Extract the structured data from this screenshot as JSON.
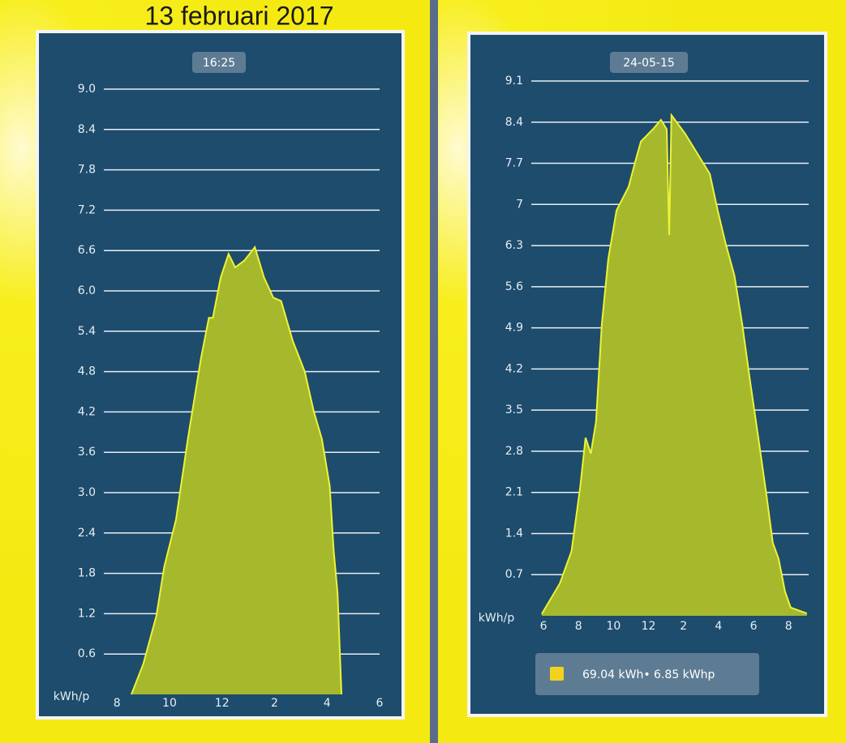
{
  "chart_data": [
    {
      "type": "area",
      "title": "13 februari 2017",
      "label": "16:25",
      "y_label": "kWh/p",
      "x": [
        8.55,
        9.0,
        9.5,
        9.8,
        10.25,
        10.7,
        11.2,
        11.5,
        11.65,
        11.95,
        12.25,
        12.5,
        12.85,
        13.25,
        13.6,
        13.95,
        14.25,
        14.7,
        15.15,
        15.5,
        15.8,
        16.1,
        16.25,
        16.4,
        16.55
      ],
      "series": [
        {
          "color": "#a6b92c",
          "values": [
            0,
            0.45,
            1.17,
            1.9,
            2.6,
            3.8,
            5.0,
            5.6,
            5.6,
            6.2,
            6.55,
            6.35,
            6.45,
            6.65,
            6.2,
            5.9,
            5.85,
            5.25,
            4.8,
            4.2,
            3.8,
            3.1,
            2.15,
            1.5,
            0
          ]
        }
      ],
      "xlim": [
        7.5,
        18
      ],
      "ylim": [
        0,
        9.0
      ],
      "xticks": [
        8,
        10,
        12,
        {
          "value": 14,
          "label": "2"
        },
        {
          "value": 16,
          "label": "4"
        },
        {
          "value": 18,
          "label": "6"
        }
      ],
      "yticks": [
        {
          "value": 0.6,
          "label": "0.6"
        },
        {
          "value": 1.2,
          "label": "1.2"
        },
        {
          "value": 1.8,
          "label": "1.8"
        },
        {
          "value": 2.4,
          "label": "2.4"
        },
        {
          "value": 3.0,
          "label": "3.0"
        },
        {
          "value": 3.6,
          "label": "3.6"
        },
        {
          "value": 4.2,
          "label": "4.2"
        },
        {
          "value": 4.8,
          "label": "4.8"
        },
        {
          "value": 5.4,
          "label": "5.4"
        },
        {
          "value": 6.0,
          "label": "6.0"
        },
        {
          "value": 6.6,
          "label": "6.6"
        },
        {
          "value": 7.2,
          "label": "7.2"
        },
        {
          "value": 7.8,
          "label": "7.8"
        },
        {
          "value": 8.4,
          "label": "8.4"
        },
        {
          "value": 9.0,
          "label": "9.0"
        }
      ],
      "grid": true
    },
    {
      "type": "area",
      "label": "24-05-15",
      "y_label": "kWh/p",
      "x": [
        5.9,
        6.93,
        7.6,
        8.1,
        8.4,
        8.7,
        9.0,
        9.33,
        9.7,
        10.17,
        10.86,
        11.23,
        11.56,
        12.25,
        12.71,
        13.04,
        13.18,
        13.31,
        14.1,
        14.8,
        15.5,
        15.95,
        16.4,
        16.9,
        17.35,
        17.8,
        18.27,
        18.73,
        19.1,
        19.43,
        19.8,
        20.12,
        21.05
      ],
      "series": [
        {
          "name": "69.04 kWh• 6.85 kWhp",
          "color": "#a6b92c",
          "values": [
            0.03,
            0.55,
            1.1,
            2.2,
            3.03,
            2.76,
            3.3,
            4.97,
            6.07,
            6.9,
            7.3,
            7.72,
            8.07,
            8.28,
            8.44,
            8.28,
            6.48,
            8.52,
            8.2,
            7.86,
            7.52,
            6.9,
            6.34,
            5.8,
            4.97,
            4.0,
            3.03,
            2.07,
            1.24,
            0.97,
            0.41,
            0.14,
            0.04
          ]
        }
      ],
      "xlim": [
        5.3,
        21.15
      ],
      "ylim": [
        0,
        9.1
      ],
      "xticks": [
        6,
        8,
        10,
        12,
        {
          "value": 14,
          "label": "2"
        },
        {
          "value": 16,
          "label": "4"
        },
        {
          "value": 18,
          "label": "6"
        },
        {
          "value": 20,
          "label": "8"
        }
      ],
      "yticks": [
        0.7,
        1.4,
        2.1,
        2.8,
        3.5,
        4.2,
        4.9,
        5.6,
        6.3,
        7.0,
        7.7,
        8.4,
        9.1
      ],
      "grid": true
    }
  ]
}
